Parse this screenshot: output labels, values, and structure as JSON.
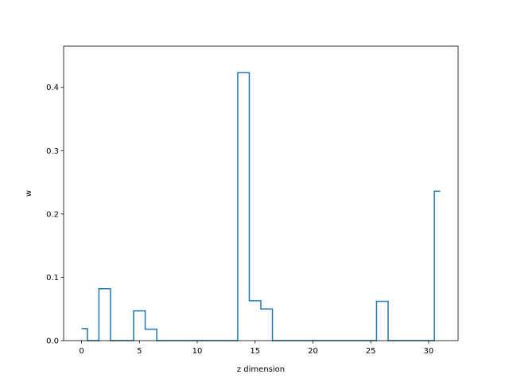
{
  "chart_data": {
    "type": "line",
    "drawstyle": "steps-mid",
    "title": "",
    "xlabel": "z dimension",
    "ylabel": "w",
    "xlim": [
      -1.55,
      32.55
    ],
    "ylim": [
      0,
      0.465
    ],
    "xticks": [
      0,
      5,
      10,
      15,
      20,
      25,
      30
    ],
    "yticks": [
      0.0,
      0.1,
      0.2,
      0.3,
      0.4
    ],
    "ytick_labels": [
      "0.0",
      "0.1",
      "0.2",
      "0.3",
      "0.4"
    ],
    "grid": false,
    "legend": "none",
    "series": [
      {
        "color": "#1f77b4",
        "x": [
          0,
          1,
          2,
          3,
          4,
          5,
          6,
          7,
          8,
          9,
          10,
          11,
          12,
          13,
          14,
          15,
          16,
          17,
          18,
          19,
          20,
          21,
          22,
          23,
          24,
          25,
          26,
          27,
          28,
          29,
          30,
          31
        ],
        "y": [
          0.019,
          0.0,
          0.082,
          0.0,
          0.0,
          0.047,
          0.018,
          0.0,
          0.0,
          0.0,
          0.0,
          0.0,
          0.0,
          0.0,
          0.423,
          0.063,
          0.05,
          0.0,
          0.0,
          0.0,
          0.0,
          0.0,
          0.0,
          0.0,
          0.0,
          0.0,
          0.062,
          0.0,
          0.0,
          0.0,
          0.0,
          0.236
        ]
      }
    ]
  }
}
